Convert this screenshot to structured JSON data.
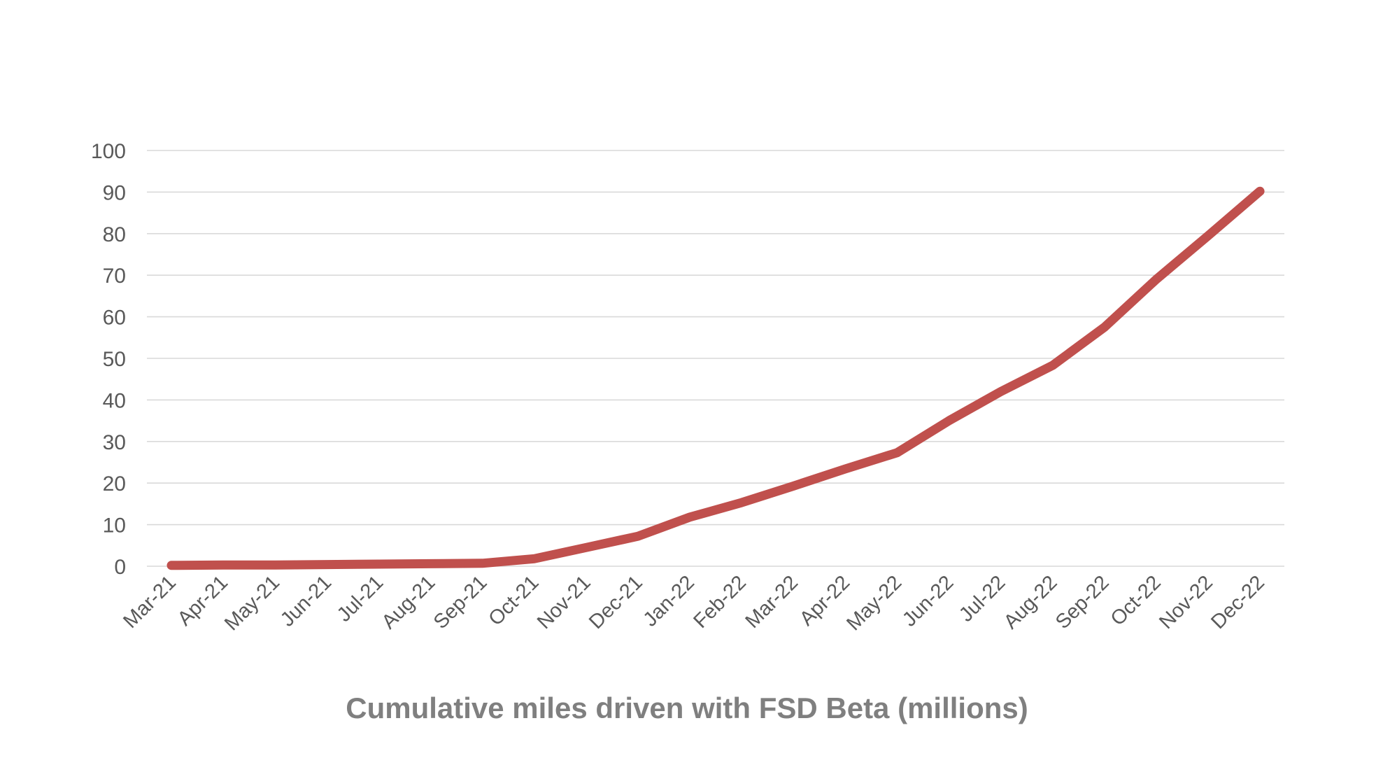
{
  "chart_data": {
    "type": "line",
    "title": "Cumulative miles driven with FSD Beta (millions)",
    "xlabel": "",
    "ylabel": "",
    "categories": [
      "Mar-21",
      "Apr-21",
      "May-21",
      "Jun-21",
      "Jul-21",
      "Aug-21",
      "Sep-21",
      "Oct-21",
      "Nov-21",
      "Dec-21",
      "Jan-22",
      "Feb-22",
      "Mar-22",
      "Apr-22",
      "May-22",
      "Jun-22",
      "Jul-22",
      "Aug-22",
      "Sep-22",
      "Oct-22",
      "Nov-22",
      "Dec-22"
    ],
    "series": [
      {
        "values": [
          0.2,
          0.3,
          0.3,
          0.4,
          0.5,
          0.6,
          0.7,
          1.8,
          4.5,
          7.2,
          11.8,
          15.3,
          19.3,
          23.4,
          27.3,
          35.0,
          42.0,
          48.3,
          57.5,
          69.0,
          79.5,
          90.2
        ],
        "color": "#c0504d"
      }
    ],
    "ylim": [
      0,
      100
    ],
    "yticks": [
      0,
      10,
      20,
      30,
      40,
      50,
      60,
      70,
      80,
      90,
      100
    ],
    "grid": true,
    "legend": "none"
  }
}
